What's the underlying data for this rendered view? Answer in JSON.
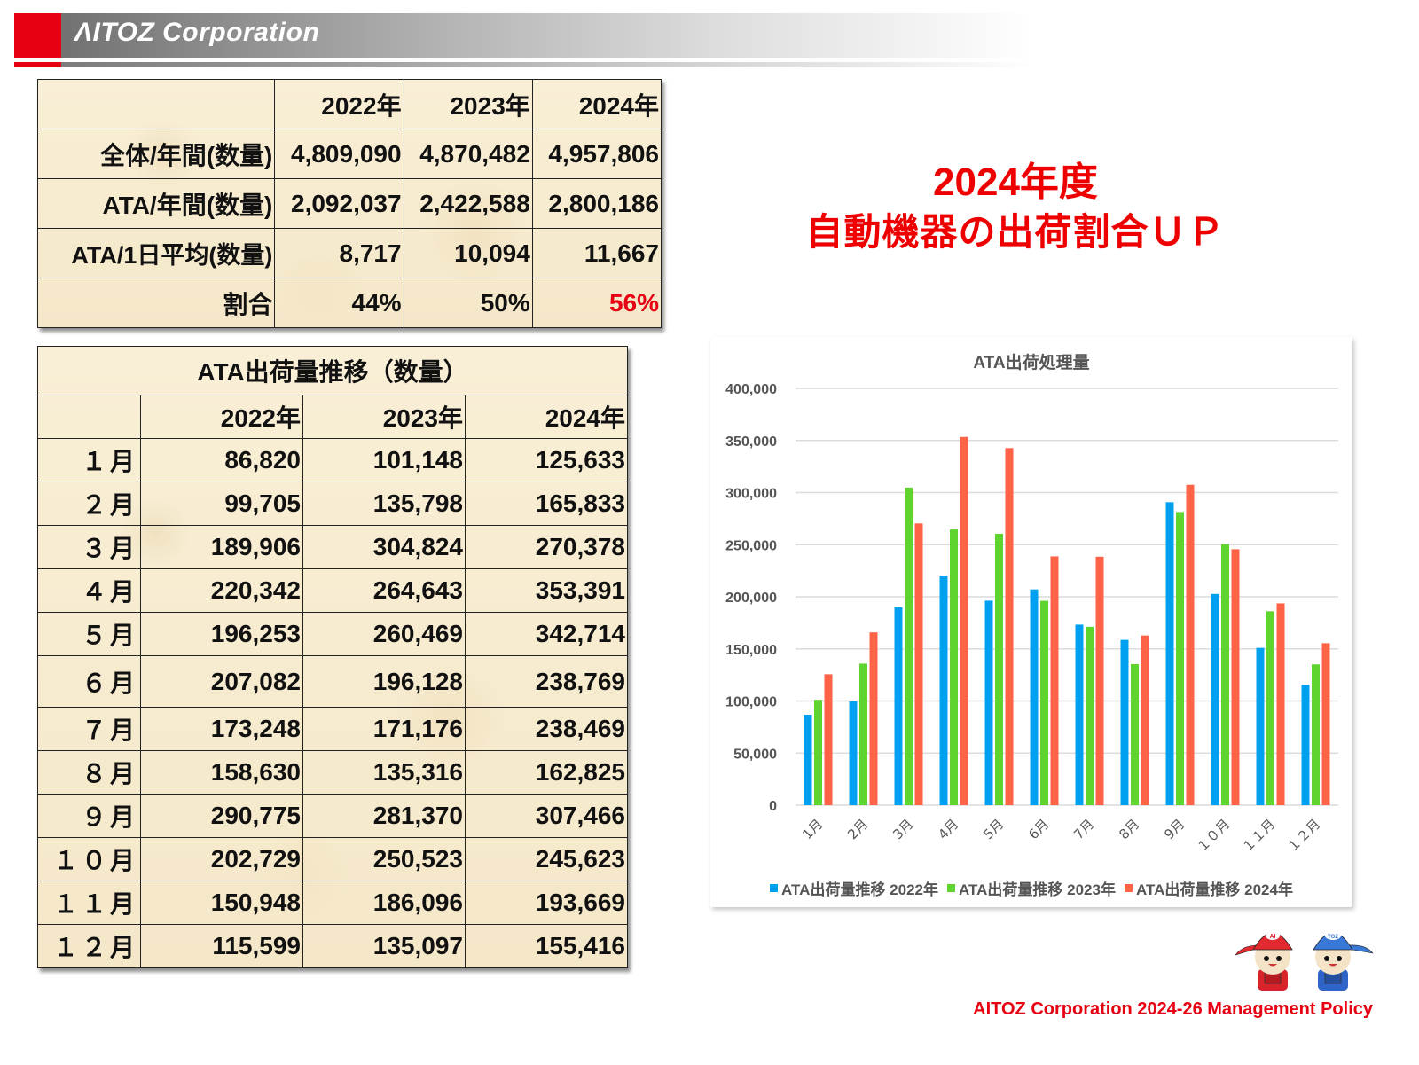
{
  "header": {
    "company_title": "ΛITOZ Corporation",
    "accent_color": "#e60012"
  },
  "summary_table": {
    "columns": [
      "",
      "2022年",
      "2023年",
      "2024年"
    ],
    "rows": [
      {
        "label": "全体/年間(数量)",
        "values": [
          "4,809,090",
          "4,870,482",
          "4,957,806"
        ]
      },
      {
        "label": "ATA/年間(数量)",
        "values": [
          "2,092,037",
          "2,422,588",
          "2,800,186"
        ]
      },
      {
        "label": "ATA/1日平均(数量)",
        "values": [
          "8,717",
          "10,094",
          "11,667"
        ]
      },
      {
        "label": "割合",
        "values": [
          "44%",
          "50%",
          "56%"
        ],
        "highlight_last": true,
        "highlight_color": "#e60012"
      }
    ]
  },
  "monthly_table": {
    "title": "ATA出荷量推移（数量）",
    "columns": [
      "",
      "2022年",
      "2023年",
      "2024年"
    ],
    "rows": [
      {
        "month": "１月",
        "values": [
          "86,820",
          "101,148",
          "125,633"
        ]
      },
      {
        "month": "２月",
        "values": [
          "99,705",
          "135,798",
          "165,833"
        ]
      },
      {
        "month": "３月",
        "values": [
          "189,906",
          "304,824",
          "270,378"
        ]
      },
      {
        "month": "４月",
        "values": [
          "220,342",
          "264,643",
          "353,391"
        ]
      },
      {
        "month": "５月",
        "values": [
          "196,253",
          "260,469",
          "342,714"
        ]
      },
      {
        "month": "６月",
        "values": [
          "207,082",
          "196,128",
          "238,769"
        ]
      },
      {
        "month": "７月",
        "values": [
          "173,248",
          "171,176",
          "238,469"
        ]
      },
      {
        "month": "８月",
        "values": [
          "158,630",
          "135,316",
          "162,825"
        ]
      },
      {
        "month": "９月",
        "values": [
          "290,775",
          "281,370",
          "307,466"
        ]
      },
      {
        "month": "１０月",
        "values": [
          "202,729",
          "250,523",
          "245,623"
        ]
      },
      {
        "month": "１１月",
        "values": [
          "150,948",
          "186,096",
          "193,669"
        ]
      },
      {
        "month": "１２月",
        "values": [
          "115,599",
          "135,097",
          "155,416"
        ]
      }
    ]
  },
  "headline": {
    "line1": "2024年度",
    "line2": "自動機器の出荷割合ＵＰ",
    "color": "#ee0000"
  },
  "chart_data": {
    "type": "bar",
    "title": "ATA出荷処理量",
    "xlabel": "",
    "ylabel": "",
    "ylim": [
      0,
      400000
    ],
    "yticks": [
      0,
      50000,
      100000,
      150000,
      200000,
      250000,
      300000,
      350000,
      400000
    ],
    "ytick_labels": [
      "0",
      "50,000",
      "100,000",
      "150,000",
      "200,000",
      "250,000",
      "300,000",
      "350,000",
      "400,000"
    ],
    "grid": true,
    "legend_position": "bottom",
    "categories": [
      "1月",
      "2月",
      "3月",
      "4月",
      "5月",
      "6月",
      "7月",
      "8月",
      "9月",
      "１０月",
      "１１月",
      "１２月"
    ],
    "series": [
      {
        "name": "ATA出荷量推移 2022年",
        "color": "#00a0f0",
        "values": [
          86820,
          99705,
          189906,
          220342,
          196253,
          207082,
          173248,
          158630,
          290775,
          202729,
          150948,
          115599
        ]
      },
      {
        "name": "ATA出荷量推移 2023年",
        "color": "#5fd42f",
        "values": [
          101148,
          135798,
          304824,
          264643,
          260469,
          196128,
          171176,
          135316,
          281370,
          250523,
          186096,
          135097
        ]
      },
      {
        "name": "ATA出荷量推移 2024年",
        "color": "#ff6347",
        "values": [
          125633,
          165833,
          270378,
          353391,
          342714,
          238769,
          238469,
          162825,
          307466,
          245623,
          193669,
          155416
        ]
      }
    ]
  },
  "mascots": {
    "left_cap_text": "AI",
    "right_cap_text": "TOZ"
  },
  "footer": {
    "text": "AITOZ Corporation 2024-26 Management Policy"
  }
}
